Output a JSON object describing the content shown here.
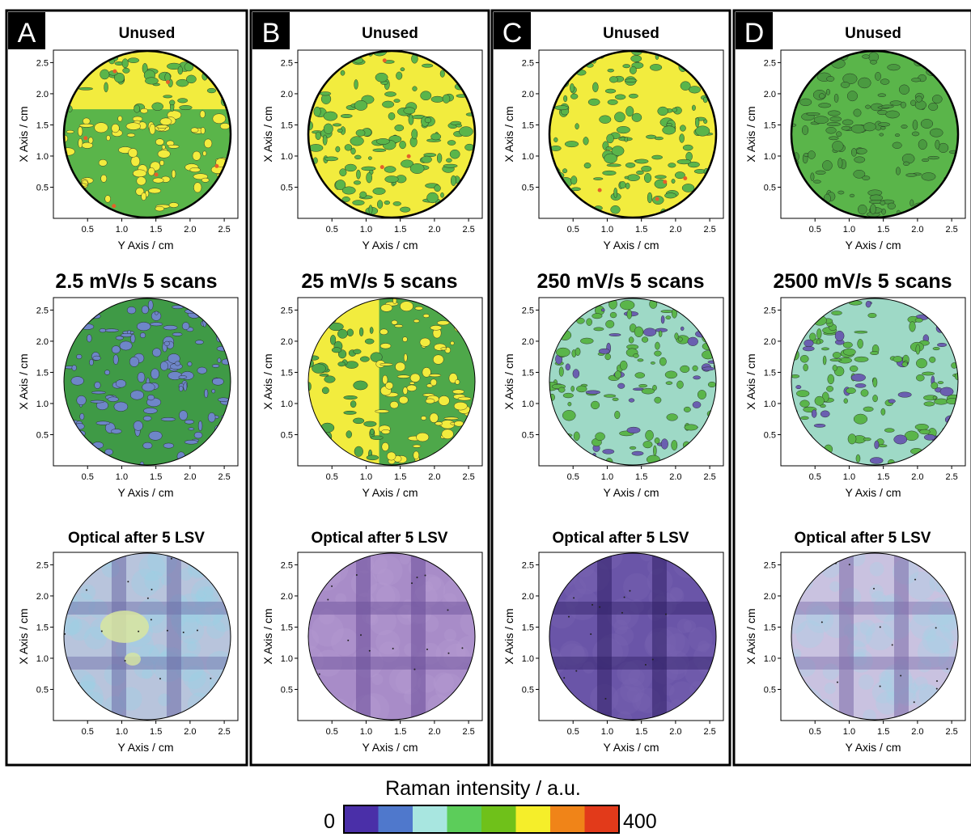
{
  "chart_data": {
    "type": "heatmap",
    "description_free": true,
    "axes": {
      "xlabel": "Y Axis / cm",
      "ylabel": "X Axis / cm",
      "xticks": [
        "0.5",
        "1.0",
        "1.5",
        "2.0",
        "2.5"
      ],
      "yticks": [
        "0.5",
        "1.0",
        "1.5",
        "2.0",
        "2.5"
      ],
      "xlim": [
        0,
        2.7
      ],
      "ylim": [
        0,
        2.7
      ]
    },
    "colorbar": {
      "title": "Raman intensity / a.u.",
      "min_label": "0",
      "max_label": "400",
      "min": 0,
      "max": 400,
      "colors": [
        "#4a2fa8",
        "#4f78cc",
        "#a8e6e0",
        "#5ccd5a",
        "#6fc11a",
        "#f5ee2a",
        "#f08418",
        "#e23a1a"
      ]
    },
    "panels": [
      {
        "letter": "A",
        "top_title": "Unused",
        "condition": "2.5 mV/s 5 scans",
        "bottom_title": "Optical after 5 LSV",
        "unused_map": {
          "dominant": "#5ab54a",
          "secondary": "#f2ec3e",
          "split": "top-yellow"
        },
        "after_map": {
          "dominant": "#3f9a46",
          "secondary": "#6e86c8"
        },
        "optical": {
          "base": "#b8c4dc",
          "tint": "#9cd0e6",
          "grid_tone": "#6b6aa6"
        }
      },
      {
        "letter": "B",
        "top_title": "Unused",
        "condition": "25 mV/s 5 scans",
        "bottom_title": "Optical after 5 LSV",
        "unused_map": {
          "dominant": "#f2ec3e",
          "secondary": "#5ab54a",
          "split": "none"
        },
        "after_map": {
          "dominant": "#4ea84a",
          "secondary": "#f2ec3e",
          "split": "left-yellow"
        },
        "optical": {
          "base": "#a88cc8",
          "tint": "#b49ad2",
          "grid_tone": "#6b4f9a"
        }
      },
      {
        "letter": "C",
        "top_title": "Unused",
        "condition": "250 mV/s 5 scans",
        "bottom_title": "Optical after 5 LSV",
        "unused_map": {
          "dominant": "#f2ec3e",
          "secondary": "#5ab54a",
          "split": "none"
        },
        "after_map": {
          "dominant": "#9ed9c6",
          "secondary": "#5ab54a",
          "tertiary": "#6a5fb0"
        },
        "optical": {
          "base": "#6a55a8",
          "tint": "#7864b2",
          "grid_tone": "#2f1f66"
        }
      },
      {
        "letter": "D",
        "top_title": "Unused",
        "condition": "2500 mV/s 5 scans",
        "bottom_title": "Optical after 5 LSV",
        "unused_map": {
          "dominant": "#5ab54a",
          "secondary": "#4a9a40",
          "split": "none"
        },
        "after_map": {
          "dominant": "#9ed9c6",
          "secondary": "#5ab54a",
          "tertiary": "#6a5fb0"
        },
        "optical": {
          "base": "#c9c2e0",
          "tint": "#a8d2e6",
          "grid_tone": "#7a6aa8"
        }
      }
    ]
  }
}
